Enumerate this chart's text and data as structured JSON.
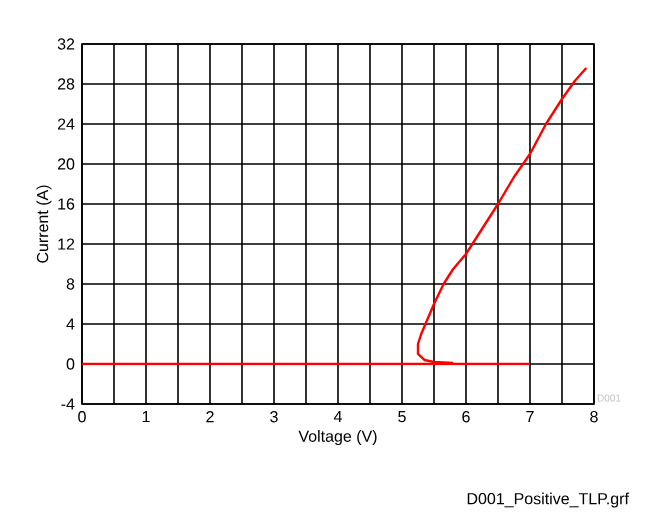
{
  "chart_data": {
    "type": "line",
    "xlabel": "Voltage (V)",
    "ylabel": "Current (A)",
    "xlim": [
      0,
      8
    ],
    "ylim": [
      -4,
      32
    ],
    "xticks": [
      0,
      {
        "value": 0.5,
        "label": null
      },
      1,
      {
        "value": 1.5,
        "label": null
      },
      2,
      {
        "value": 2.5,
        "label": null
      },
      3,
      {
        "value": 3.5,
        "label": null
      },
      4,
      {
        "value": 4.5,
        "label": null
      },
      5,
      {
        "value": 5.5,
        "label": null
      },
      6,
      {
        "value": 6.5,
        "label": null
      },
      7,
      {
        "value": 7.5,
        "label": null
      },
      8
    ],
    "yticks": [
      -4,
      0,
      4,
      8,
      12,
      16,
      20,
      24,
      28,
      32
    ],
    "grid": true,
    "marker": "none",
    "line_style": "solid",
    "series": [
      {
        "color": "#ff0000",
        "x": [
          0,
          7
        ],
        "values": [
          0,
          0
        ]
      },
      {
        "color": "#ff0000",
        "x": [
          5.8,
          5.5,
          5.35,
          5.25,
          5.25,
          5.3,
          5.4,
          5.5,
          5.65,
          5.8,
          6.0,
          6.25,
          6.5,
          6.75,
          7.0,
          7.25,
          7.5,
          7.7,
          7.88
        ],
        "values": [
          0.1,
          0.2,
          0.4,
          1,
          2,
          3,
          4.5,
          6,
          8,
          9.5,
          11,
          13.5,
          16,
          18.7,
          21,
          24,
          26.5,
          28.3,
          29.6
        ]
      }
    ],
    "annotations": [
      "D001",
      "D001_Positive_TLP.grf"
    ]
  }
}
